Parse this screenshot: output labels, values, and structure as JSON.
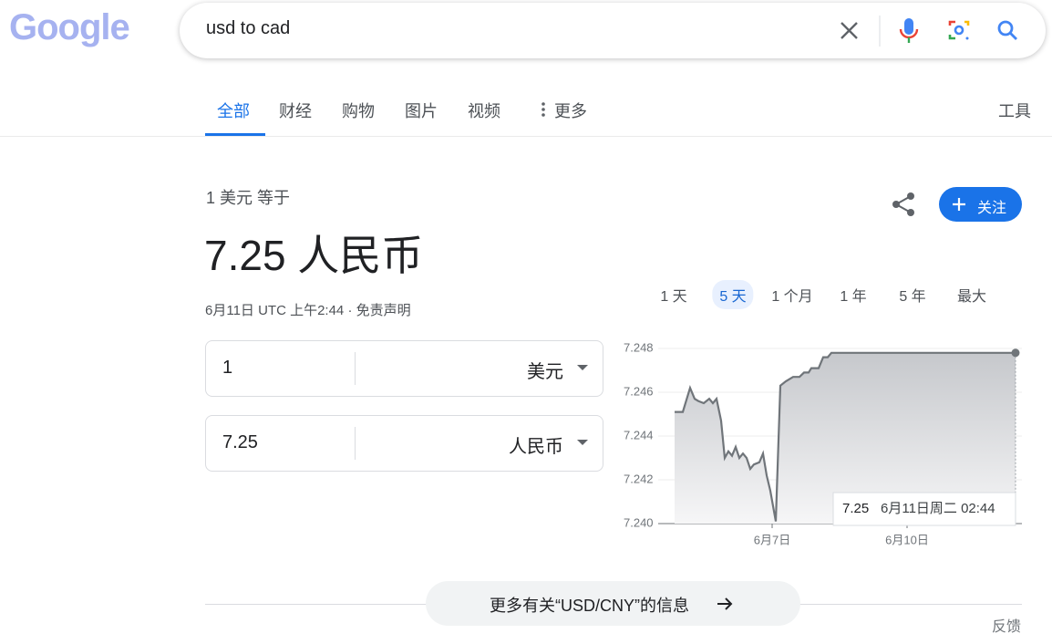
{
  "logo": "Google",
  "search": {
    "query": "usd to cad"
  },
  "tabs": [
    "全部",
    "财经",
    "购物",
    "图片",
    "视频",
    "更多"
  ],
  "active_tab": 0,
  "tools": "工具",
  "converter": {
    "heading": "1 美元 等于",
    "result": "7.25 人民币",
    "timestamp": "6月11日 UTC 上午2:44 · 免责声明",
    "follow": "关注",
    "inputs": [
      {
        "amount": "1",
        "currency": "美元"
      },
      {
        "amount": "7.25",
        "currency": "人民币"
      }
    ]
  },
  "ranges": [
    "1 天",
    "5 天",
    "1 个月",
    "1 年",
    "5 年",
    "最大"
  ],
  "active_range": 1,
  "chart_data": {
    "type": "area",
    "color": "#70757a",
    "x": [
      0,
      9,
      17,
      22,
      26,
      32,
      38,
      42,
      46,
      51,
      55,
      59,
      63,
      67,
      71,
      75,
      79,
      83,
      87,
      93,
      97,
      101,
      105,
      111,
      116,
      122,
      130,
      137,
      142,
      147,
      150,
      158,
      163,
      168,
      172,
      374
    ],
    "values": [
      7.2451,
      7.2451,
      7.2462,
      7.2457,
      7.2456,
      7.2455,
      7.2457,
      7.2455,
      7.2457,
      7.2447,
      7.243,
      7.2433,
      7.2431,
      7.2435,
      7.243,
      7.2432,
      7.243,
      7.2425,
      7.2427,
      7.2428,
      7.2432,
      7.2422,
      7.2415,
      7.2401,
      7.2463,
      7.2465,
      7.2467,
      7.2467,
      7.2469,
      7.2469,
      7.2471,
      7.2471,
      7.2476,
      7.2476,
      7.2478,
      7.2478
    ],
    "xlim": [
      0,
      374
    ],
    "xticks": [
      {
        "value": 107,
        "label": "6月7日"
      },
      {
        "value": 255,
        "label": "6月10日"
      }
    ],
    "ylim": [
      7.24,
      7.248
    ],
    "yticks": [
      {
        "value": 7.24,
        "label": "7.240"
      },
      {
        "value": 7.242,
        "label": "7.242"
      },
      {
        "value": 7.244,
        "label": "7.244"
      },
      {
        "value": 7.246,
        "label": "7.246"
      },
      {
        "value": 7.248,
        "label": "7.248"
      }
    ],
    "grid": true,
    "tooltip": {
      "value": "7.25",
      "time": "6月11日周二 02:44"
    }
  },
  "footer": {
    "more": "更多有关“USD/CNY”的信息",
    "feedback": "反馈"
  }
}
